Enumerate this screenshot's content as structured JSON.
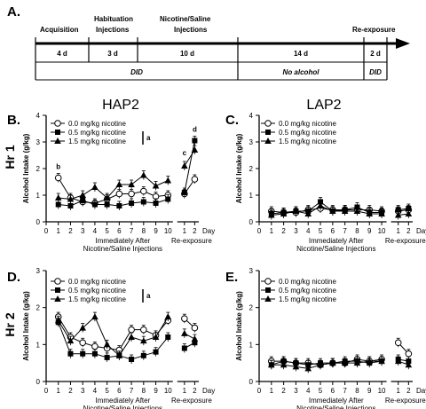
{
  "timeline": {
    "panel_letter": "A.",
    "phases": [
      "Acquisition",
      "Habituation Injections",
      "Nicotine/Saline Injections",
      "Re-exposure"
    ],
    "phase_lines": [
      [
        "Acquisition"
      ],
      [
        "Habituation",
        "Injections"
      ],
      [
        "Nicotine/Saline",
        "Injections"
      ],
      [
        "Re-exposure"
      ]
    ],
    "durations": [
      "4 d",
      "3 d",
      "10 d",
      "14 d",
      "2 d"
    ],
    "conditions": [
      "DID",
      "No alcohol",
      "DID"
    ]
  },
  "columns": {
    "left": "HAP2",
    "right": "LAP2"
  },
  "rows": {
    "top": "Hr 1",
    "bottom": "Hr 2"
  },
  "legend": [
    "0.0 mg/kg nicotine",
    "0.5 mg/kg nicotine",
    "1.5 mg/kg nicotine"
  ],
  "axes": {
    "ylabel": "Alcohol Intake (g/kg)",
    "xlabel_line1": "Immediately After",
    "xlabel_line2": "Nicotine/Saline Injections",
    "reexposure_label": "Re-exposure",
    "day_label": "Day",
    "x_ticks": [
      "0",
      "1",
      "2",
      "3",
      "4",
      "5",
      "6",
      "7",
      "8",
      "9",
      "10"
    ],
    "reexp_ticks": [
      "1",
      "2"
    ],
    "y_ticks": [
      "0",
      "1",
      "2",
      "3",
      "4"
    ]
  },
  "chart_data": [
    {
      "panel": "B.",
      "type": "line",
      "title": "HAP2",
      "ylabel": "Alcohol Intake (g/kg)",
      "ylim": [
        0,
        4
      ],
      "x": [
        1,
        2,
        3,
        4,
        5,
        6,
        7,
        8,
        9,
        10
      ],
      "reexposure_x": [
        1,
        2
      ],
      "annotations": [
        "b",
        "c",
        "d",
        "a"
      ],
      "series": [
        {
          "name": "0.0 mg/kg nicotine",
          "values": [
            1.65,
            0.9,
            0.75,
            0.7,
            0.85,
            1.05,
            1.05,
            1.15,
            0.95,
            1.0
          ],
          "reexposure": [
            1.05,
            1.6
          ]
        },
        {
          "name": "0.5 mg/kg nicotine",
          "values": [
            0.65,
            0.6,
            0.8,
            0.65,
            0.65,
            0.6,
            0.7,
            0.75,
            0.7,
            0.85
          ],
          "reexposure": [
            1.1,
            3.05
          ]
        },
        {
          "name": "1.5 mg/kg nicotine",
          "values": [
            0.9,
            0.85,
            1.0,
            1.3,
            0.9,
            1.4,
            1.4,
            1.75,
            1.35,
            1.55
          ],
          "reexposure": [
            2.1,
            2.7
          ]
        }
      ]
    },
    {
      "panel": "C.",
      "type": "line",
      "title": "LAP2",
      "ylabel": "Alcohol Intake (g/kg)",
      "ylim": [
        0,
        4
      ],
      "x": [
        1,
        2,
        3,
        4,
        5,
        6,
        7,
        8,
        9,
        10
      ],
      "reexposure_x": [
        1,
        2
      ],
      "series": [
        {
          "name": "0.0 mg/kg nicotine",
          "values": [
            0.4,
            0.35,
            0.35,
            0.45,
            0.5,
            0.45,
            0.45,
            0.45,
            0.45,
            0.4
          ],
          "reexposure": [
            0.4,
            0.45
          ]
        },
        {
          "name": "0.5 mg/kg nicotine",
          "values": [
            0.3,
            0.35,
            0.4,
            0.4,
            0.75,
            0.4,
            0.45,
            0.55,
            0.35,
            0.35
          ],
          "reexposure": [
            0.45,
            0.5
          ]
        },
        {
          "name": "1.5 mg/kg nicotine",
          "values": [
            0.25,
            0.3,
            0.4,
            0.3,
            0.6,
            0.4,
            0.4,
            0.4,
            0.3,
            0.3
          ],
          "reexposure": [
            0.25,
            0.3
          ]
        }
      ]
    },
    {
      "panel": "D.",
      "type": "line",
      "title": "",
      "ylabel": "Alcohol Intake (g/kg)",
      "ylim": [
        0,
        3
      ],
      "x": [
        1,
        2,
        3,
        4,
        5,
        6,
        7,
        8,
        9,
        10
      ],
      "reexposure_x": [
        1,
        2
      ],
      "annotations": [
        "a"
      ],
      "series": [
        {
          "name": "0.0 mg/kg nicotine",
          "values": [
            1.75,
            1.2,
            1.05,
            0.95,
            0.9,
            0.85,
            1.4,
            1.4,
            1.25,
            1.65
          ],
          "reexposure": [
            1.7,
            1.45
          ]
        },
        {
          "name": "0.5 mg/kg nicotine",
          "values": [
            1.6,
            0.75,
            0.75,
            0.75,
            0.65,
            0.7,
            0.6,
            0.7,
            0.8,
            1.2
          ],
          "reexposure": [
            0.9,
            1.05
          ]
        },
        {
          "name": "1.5 mg/kg nicotine",
          "values": [
            1.65,
            1.1,
            1.45,
            1.75,
            1.0,
            0.7,
            1.2,
            1.1,
            1.2,
            1.75
          ],
          "reexposure": [
            1.3,
            1.15
          ]
        }
      ]
    },
    {
      "panel": "E.",
      "type": "line",
      "title": "",
      "ylabel": "Alcohol Intake (g/kg)",
      "ylim": [
        0,
        3
      ],
      "x": [
        1,
        2,
        3,
        4,
        5,
        6,
        7,
        8,
        9,
        10
      ],
      "reexposure_x": [
        1,
        2
      ],
      "series": [
        {
          "name": "0.0 mg/kg nicotine",
          "values": [
            0.55,
            0.55,
            0.5,
            0.5,
            0.45,
            0.5,
            0.5,
            0.6,
            0.55,
            0.6
          ],
          "reexposure": [
            1.05,
            0.75
          ]
        },
        {
          "name": "0.5 mg/kg nicotine",
          "values": [
            0.45,
            0.55,
            0.5,
            0.45,
            0.5,
            0.5,
            0.55,
            0.55,
            0.5,
            0.55
          ],
          "reexposure": [
            0.6,
            0.55
          ]
        },
        {
          "name": "1.5 mg/kg nicotine",
          "values": [
            0.45,
            0.45,
            0.4,
            0.35,
            0.45,
            0.5,
            0.5,
            0.5,
            0.55,
            0.55
          ],
          "reexposure": [
            0.55,
            0.45
          ]
        }
      ]
    }
  ]
}
